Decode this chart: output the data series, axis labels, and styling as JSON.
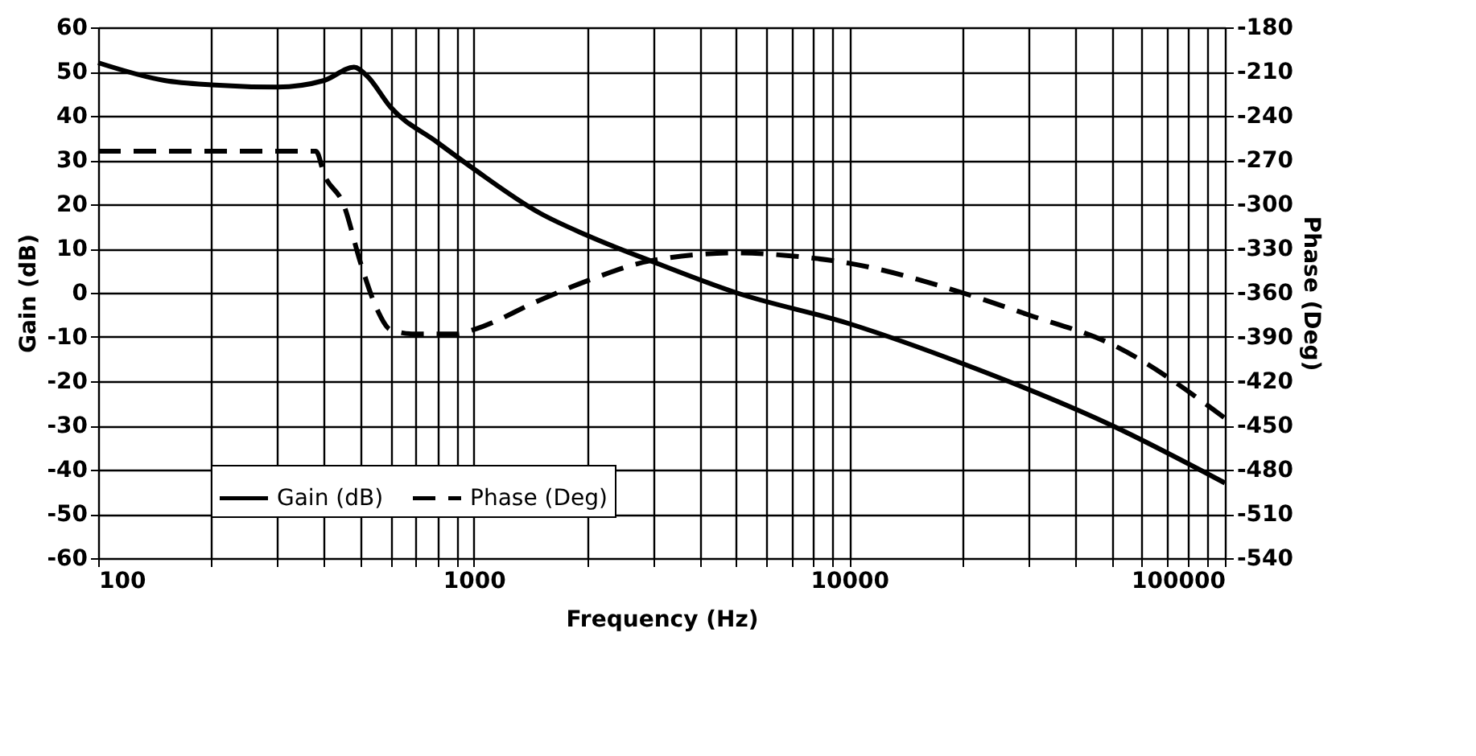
{
  "chart_data": {
    "type": "line",
    "xlabel": "Frequency (Hz)",
    "ylabel": "Gain (dB)",
    "y2label": "Phase (Deg)",
    "log": "x",
    "grid": true,
    "legend": "bottom",
    "marker": "none",
    "xlim": [
      100,
      100000
    ],
    "xticks": [
      100,
      {
        "value": 200,
        "label": null
      },
      {
        "value": 300,
        "label": null
      },
      {
        "value": 400,
        "label": null
      },
      {
        "value": 500,
        "label": null
      },
      {
        "value": 600,
        "label": null
      },
      {
        "value": 700,
        "label": null
      },
      {
        "value": 800,
        "label": null
      },
      {
        "value": 900,
        "label": null
      },
      1000,
      {
        "value": 2000,
        "label": null
      },
      {
        "value": 3000,
        "label": null
      },
      {
        "value": 4000,
        "label": null
      },
      {
        "value": 5000,
        "label": null
      },
      {
        "value": 6000,
        "label": null
      },
      {
        "value": 7000,
        "label": null
      },
      {
        "value": 8000,
        "label": null
      },
      {
        "value": 9000,
        "label": null
      },
      10000,
      {
        "value": 20000,
        "label": null
      },
      {
        "value": 30000,
        "label": null
      },
      {
        "value": 40000,
        "label": null
      },
      {
        "value": 50000,
        "label": null
      },
      {
        "value": 60000,
        "label": null
      },
      {
        "value": 70000,
        "label": null
      },
      {
        "value": 80000,
        "label": null
      },
      {
        "value": 90000,
        "label": null
      },
      100000
    ],
    "ylim": [
      -60,
      60
    ],
    "yticks": [
      -60,
      -50,
      -40,
      -30,
      -20,
      -10,
      0,
      10,
      20,
      30,
      40,
      50,
      60
    ],
    "y2lim": [
      -540,
      -180
    ],
    "y2ticks": [
      -540,
      -510,
      -480,
      -450,
      -420,
      -390,
      -360,
      -330,
      -300,
      -270,
      -240,
      -210,
      -180
    ],
    "series": [
      {
        "name": "Gain (dB)",
        "color": "#000000",
        "line_style": "solid",
        "x": [
          100,
          150,
          200,
          300,
          400,
          480,
          520,
          600,
          800,
          1000,
          1500,
          2000,
          3000,
          5000,
          10000,
          20000,
          50000,
          100000
        ],
        "values": [
          52,
          48,
          47,
          46.5,
          48,
          51,
          49,
          42,
          34,
          28,
          18,
          13,
          7,
          0,
          -7,
          -16,
          -30,
          -43
        ]
      },
      {
        "name": "Phase (Deg)",
        "color": "#000000",
        "line_style": "dashed",
        "axis": "y2",
        "x": [
          100,
          380,
          400,
          450,
          500,
          550,
          600,
          700,
          900,
          1000,
          1500,
          2000,
          3000,
          5000,
          7000,
          10000,
          20000,
          30000,
          50000,
          100000
        ],
        "values": [
          -264,
          -264,
          -280,
          -300,
          -340,
          -370,
          -385,
          -388,
          -388,
          -385,
          -365,
          -352,
          -338,
          -333,
          -335,
          -340,
          -360,
          -375,
          -395,
          -445
        ]
      }
    ]
  }
}
